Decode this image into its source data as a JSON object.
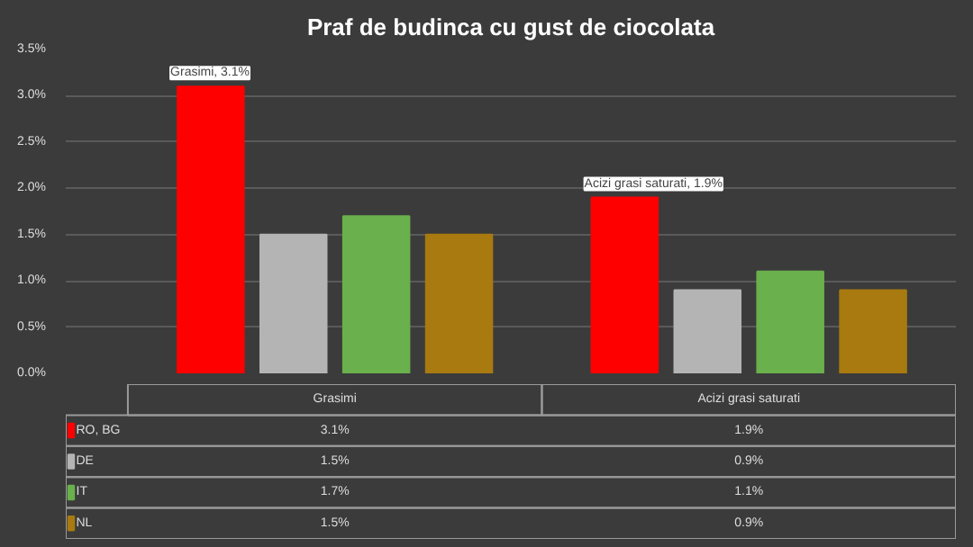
{
  "chart_data": {
    "type": "bar",
    "title": "Praf de budinca cu gust de ciocolata",
    "categories": [
      "Grasimi",
      "Acizi grasi saturati"
    ],
    "series": [
      {
        "name": "RO, BG",
        "color": "#ff0000",
        "values": [
          3.1,
          1.9
        ],
        "value_labels": [
          "3.1%",
          "1.9%"
        ]
      },
      {
        "name": "DE",
        "color": "#b4b4b4",
        "values": [
          1.5,
          0.9
        ],
        "value_labels": [
          "1.5%",
          "0.9%"
        ]
      },
      {
        "name": "IT",
        "color": "#6ab04c",
        "values": [
          1.7,
          1.1
        ],
        "value_labels": [
          "1.7%",
          "1.1%"
        ]
      },
      {
        "name": "NL",
        "color": "#a87a10",
        "values": [
          1.5,
          0.9
        ],
        "value_labels": [
          "1.5%",
          "0.9%"
        ]
      }
    ],
    "ylim": [
      0,
      3.5
    ],
    "yticks": [
      {
        "value": 0,
        "label": "0.0%"
      },
      {
        "value": 0.5,
        "label": "0.5%"
      },
      {
        "value": 1,
        "label": "1.0%"
      },
      {
        "value": 1.5,
        "label": "1.5%"
      },
      {
        "value": 2,
        "label": "2.0%"
      },
      {
        "value": 2.5,
        "label": "2.5%"
      },
      {
        "value": 3,
        "label": "3.0%"
      },
      {
        "value": 3.5,
        "label": "3.5%"
      }
    ],
    "grid": "y",
    "legend": "bottom",
    "annotations": [
      "Grasimi, 3.1%",
      "Acizi grasi saturati, 1.9%"
    ]
  }
}
